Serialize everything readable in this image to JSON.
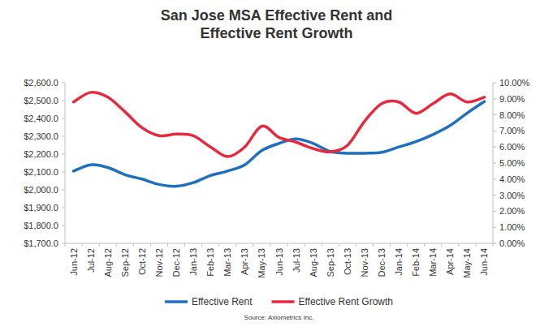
{
  "chart_data": {
    "type": "line",
    "title": "San Jose MSA Effective Rent and Effective Rent Growth",
    "source": "Source: Axiometrics Inc.",
    "categories": [
      "Jun-12",
      "Jul-12",
      "Aug-12",
      "Sep-12",
      "Oct-12",
      "Nov-12",
      "Dec-12",
      "Jan-13",
      "Feb-13",
      "Mar-13",
      "Apr-13",
      "May-13",
      "Jun-13",
      "Jul-13",
      "Aug-13",
      "Sep-13",
      "Oct-13",
      "Nov-13",
      "Dec-13",
      "Jan-14",
      "Feb-14",
      "Mar-14",
      "Apr-14",
      "May-14",
      "Jun-14"
    ],
    "series": [
      {
        "name": "Effective Rent",
        "color": "#1f6fbf",
        "values": [
          2105,
          2140,
          2125,
          2085,
          2060,
          2030,
          2020,
          2040,
          2080,
          2105,
          2140,
          2220,
          2260,
          2285,
          2260,
          2215,
          2205,
          2205,
          2210,
          2240,
          2270,
          2310,
          2360,
          2430,
          2495
        ]
      },
      {
        "name": "Effective Rent Growth",
        "color": "#e8283c",
        "axis": "y2",
        "values": [
          8.8,
          9.4,
          9.1,
          8.2,
          7.2,
          6.7,
          6.8,
          6.7,
          6.0,
          5.4,
          6.0,
          7.3,
          6.6,
          6.3,
          5.9,
          5.7,
          6.1,
          7.6,
          8.7,
          8.8,
          8.1,
          8.7,
          9.3,
          8.8,
          9.1
        ]
      }
    ],
    "ylim": [
      1700,
      2600
    ],
    "yticks": [
      {
        "value": 1700,
        "label": "$1,700.0"
      },
      {
        "value": 1800,
        "label": "$1,800.0"
      },
      {
        "value": 1900,
        "label": "$1,900.0"
      },
      {
        "value": 2000,
        "label": "$2,000.0"
      },
      {
        "value": 2100,
        "label": "$2,100.0"
      },
      {
        "value": 2200,
        "label": "$2,200.0"
      },
      {
        "value": 2300,
        "label": "$2,300.0"
      },
      {
        "value": 2400,
        "label": "$2,400.0"
      },
      {
        "value": 2500,
        "label": "$2,500.0"
      },
      {
        "value": 2600,
        "label": "$2,600.0"
      }
    ],
    "y2lim": [
      0,
      10
    ],
    "y2ticks": [
      {
        "value": 0,
        "label": "0.00%"
      },
      {
        "value": 1,
        "label": "1.00%"
      },
      {
        "value": 2,
        "label": "2.00%"
      },
      {
        "value": 3,
        "label": "3.00%"
      },
      {
        "value": 4,
        "label": "4.00%"
      },
      {
        "value": 5,
        "label": "5.00%"
      },
      {
        "value": 6,
        "label": "6.00%"
      },
      {
        "value": 7,
        "label": "7.00%"
      },
      {
        "value": 8,
        "label": "8.00%"
      },
      {
        "value": 9,
        "label": "9.00%"
      },
      {
        "value": 10,
        "label": "10.00%"
      }
    ],
    "grid": false,
    "legend": "bottom"
  }
}
